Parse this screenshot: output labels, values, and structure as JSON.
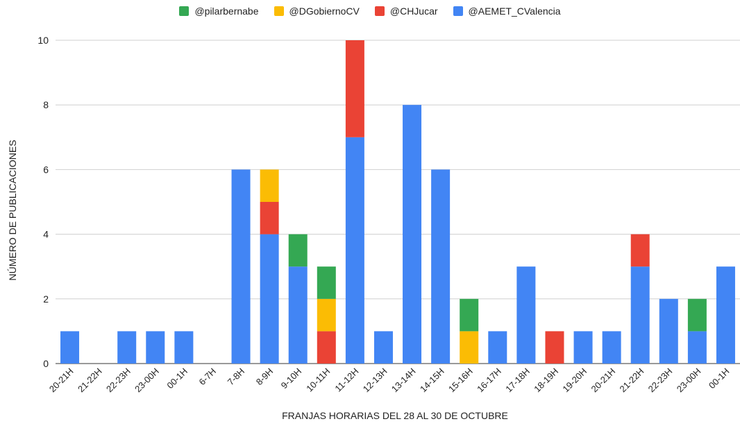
{
  "chart_data": {
    "type": "bar",
    "stacked": true,
    "xlabel": "FRANJAS HORARIAS DEL 28 AL 30 DE OCTUBRE",
    "ylabel": "NÚMERO DE PUBLICACIONES",
    "ylim": [
      0,
      10
    ],
    "yticks": [
      0,
      2,
      4,
      6,
      8,
      10
    ],
    "grid": true,
    "legend_position": "top",
    "categories": [
      "20-21H",
      "21-22H",
      "22-23H",
      "23-00H",
      "00-1H",
      "6-7H",
      "7-8H",
      "8-9H",
      "9-10H",
      "10-11H",
      "11-12H",
      "12-13H",
      "13-14H",
      "14-15H",
      "15-16H",
      "16-17H",
      "17-18H",
      "18-19H",
      "19-20H",
      "20-21H",
      "21-22H",
      "22-23H",
      "23-00H",
      "00-1H"
    ],
    "legend": [
      "@pilarbernabe",
      "@DGobiernoCV",
      "@CHJucar",
      "@AEMET_CValencia"
    ],
    "series": [
      {
        "name": "@AEMET_CValencia",
        "color": "#4285f4",
        "values": [
          1,
          0,
          1,
          1,
          1,
          0,
          6,
          4,
          3,
          0,
          7,
          1,
          8,
          6,
          0,
          1,
          3,
          0,
          1,
          1,
          3,
          2,
          1,
          3
        ]
      },
      {
        "name": "@CHJucar",
        "color": "#ea4335",
        "values": [
          0,
          0,
          0,
          0,
          0,
          0,
          0,
          1,
          0,
          1,
          3,
          0,
          0,
          0,
          0,
          0,
          0,
          1,
          0,
          0,
          1,
          0,
          0,
          0
        ]
      },
      {
        "name": "@DGobiernoCV",
        "color": "#fbbc04",
        "values": [
          0,
          0,
          0,
          0,
          0,
          0,
          0,
          1,
          0,
          1,
          0,
          0,
          0,
          0,
          1,
          0,
          0,
          0,
          0,
          0,
          0,
          0,
          0,
          0
        ]
      },
      {
        "name": "@pilarbernabe",
        "color": "#34a853",
        "values": [
          0,
          0,
          0,
          0,
          0,
          0,
          0,
          0,
          1,
          1,
          0,
          0,
          0,
          0,
          1,
          0,
          0,
          0,
          0,
          0,
          0,
          0,
          1,
          0
        ]
      }
    ]
  }
}
